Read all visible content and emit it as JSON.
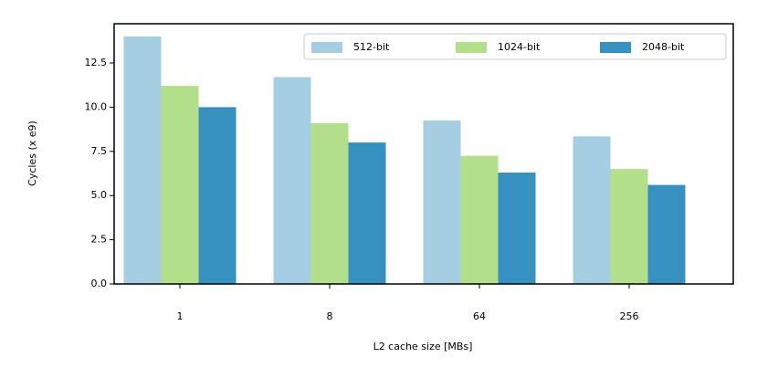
{
  "chart_data": {
    "type": "bar",
    "x_label": "L2 cache size [MBs]",
    "y_label": "Cycles (x e9)",
    "categories": [
      "1",
      "8",
      "64",
      "256"
    ],
    "series": [
      {
        "name": "512-bit",
        "color": "#a6cee3",
        "values": [
          14.0,
          11.7,
          9.25,
          8.35
        ]
      },
      {
        "name": "1024-bit",
        "color": "#b2df8a",
        "values": [
          11.2,
          9.1,
          7.25,
          6.5
        ]
      },
      {
        "name": "2048-bit",
        "color": "#3690c0",
        "values": [
          10.0,
          8.0,
          6.3,
          5.6
        ]
      }
    ],
    "ylim": [
      0,
      14.72
    ],
    "yticks": [
      {
        "value": 0,
        "label": "0.0"
      },
      {
        "value": 2.5,
        "label": "2.5"
      },
      {
        "value": 5,
        "label": "5.0"
      },
      {
        "value": 7.5,
        "label": "7.5"
      },
      {
        "value": 10,
        "label": "10.0"
      },
      {
        "value": 12.5,
        "label": "12.5"
      }
    ],
    "legend": "upper right"
  }
}
